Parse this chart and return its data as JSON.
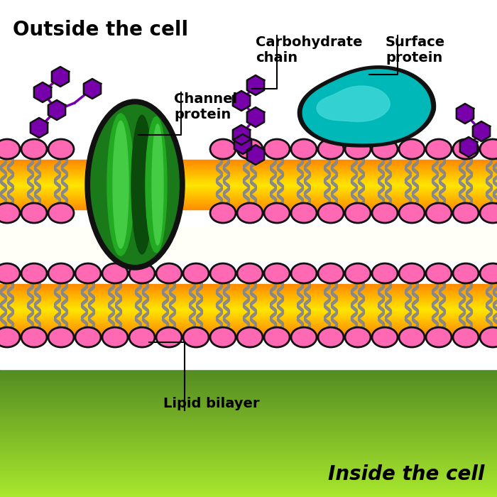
{
  "outside_label": "Outside the cell",
  "inside_label": "Inside the cell",
  "lipid_bilayer_label": "Lipid bilayer",
  "channel_protein_label": "Channel\nprotein",
  "carbohydrate_label": "Carbohydrate\nchain",
  "surface_protein_label": "Surface\nprotein",
  "bg_color": "#ffffff",
  "membrane_orange": "#FFA500",
  "pink_head": "#FF69B4",
  "green_dark": "#1a7a1a",
  "green_mid": "#22aa22",
  "green_light": "#44cc44",
  "green_highlight": "#66ee66",
  "teal_dark": "#008888",
  "teal_mid": "#00b8b8",
  "teal_light": "#40d8d8",
  "purple": "#7700aa",
  "tail_color": "#888888",
  "text_color": "#000000",
  "outline_color": "#111111",
  "bottom_green": "#a8e870"
}
